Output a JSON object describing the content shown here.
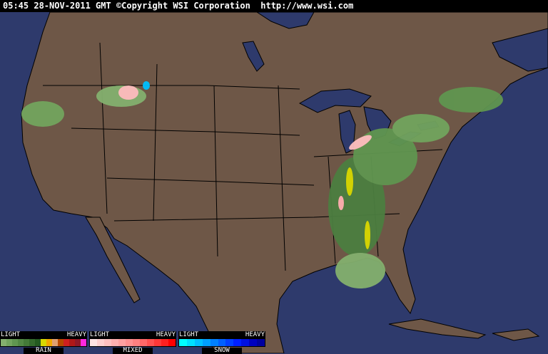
{
  "header": {
    "timestamp": "05:45 28-NOV-2011 GMT",
    "copyright": "©Copyright WSI Corporation",
    "url": "http://www.wsi.com"
  },
  "colors": {
    "ocean": "#2e3a6c",
    "land": "#6e5747",
    "border": "#000000"
  },
  "legend": [
    {
      "name": "RAIN",
      "light": "LIGHT",
      "heavy": "HEAVY",
      "colors": [
        "#84b06e",
        "#72a45e",
        "#609650",
        "#528844",
        "#447a38",
        "#346a2c",
        "#245a20",
        "#d8d800",
        "#f0a800",
        "#e0a070",
        "#b84800",
        "#d02020",
        "#b01818",
        "#901828",
        "#ff28e0"
      ]
    },
    {
      "name": "MIXED",
      "light": "LIGHT",
      "heavy": "HEAVY",
      "colors": [
        "#ffe4e4",
        "#ffd0d0",
        "#ffc0c0",
        "#ffb0b0",
        "#ffa0a0",
        "#ff9090",
        "#ff8080",
        "#ff6868",
        "#ff5050",
        "#ff3838",
        "#ff2020",
        "#ff0000"
      ]
    },
    {
      "name": "SNOW",
      "light": "LIGHT",
      "heavy": "HEAVY",
      "colors": [
        "#00ffff",
        "#00e0ff",
        "#00c0ff",
        "#00a0ff",
        "#0080ff",
        "#0060ff",
        "#0040ff",
        "#0020ff",
        "#0010e0",
        "#0000c0",
        "#0000a0"
      ]
    }
  ]
}
